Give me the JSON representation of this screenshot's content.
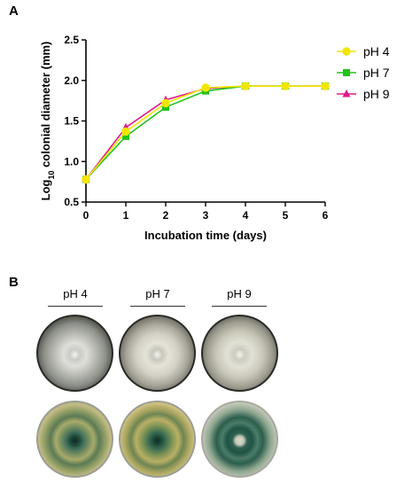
{
  "panel_a_letter": "A",
  "panel_b_letter": "B",
  "chart_data": {
    "type": "line",
    "x": [
      0,
      1,
      2,
      3,
      4,
      5,
      6
    ],
    "xlabel": "Incubation time (days)",
    "ylabel_parts": [
      "Log",
      "10",
      " colonial diameter (mm)"
    ],
    "xlim": [
      0,
      6
    ],
    "ylim": [
      0.5,
      2.5
    ],
    "xticks": [
      "0",
      "1",
      "2",
      "3",
      "4",
      "5",
      "6"
    ],
    "yticks": [
      "0.5",
      "1.0",
      "1.5",
      "2.0",
      "2.5"
    ],
    "grid": false,
    "legend_position": "top-right",
    "series": [
      {
        "name": "pH 4",
        "marker": "circle",
        "color": "#f2e600",
        "values": [
          0.78,
          1.37,
          1.72,
          1.91,
          1.93,
          1.93,
          1.93
        ]
      },
      {
        "name": "pH 7",
        "marker": "square",
        "color": "#22c21a",
        "values": [
          0.78,
          1.31,
          1.67,
          1.87,
          1.93,
          1.93,
          1.93
        ]
      },
      {
        "name": "pH 9",
        "marker": "triangle",
        "color": "#e0198a",
        "values": [
          0.78,
          1.42,
          1.76,
          1.9,
          1.93,
          1.93,
          1.93
        ]
      }
    ]
  },
  "plates": {
    "labels": [
      "pH 4",
      "pH 7",
      "pH 9"
    ]
  }
}
